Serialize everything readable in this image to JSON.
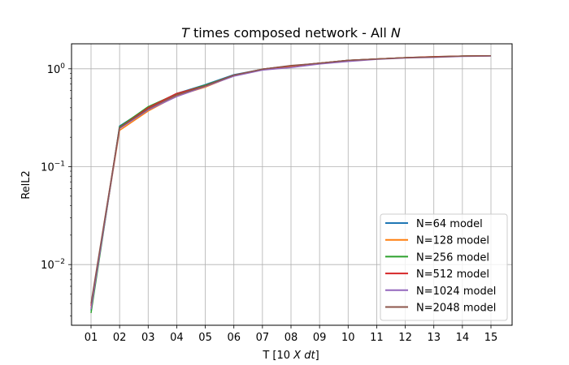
{
  "chart_data": {
    "type": "line",
    "title_parts": [
      "T",
      " times composed network - All ",
      "N"
    ],
    "xlabel_parts": [
      "T [10 ",
      "X dt",
      "]"
    ],
    "ylabel": "RelL2",
    "yscale": "log",
    "ylim": [
      0.0024,
      1.8
    ],
    "grid": true,
    "legend_position": "lower-right",
    "categories": [
      "01",
      "02",
      "03",
      "04",
      "05",
      "06",
      "07",
      "08",
      "09",
      "10",
      "11",
      "12",
      "13",
      "14",
      "15"
    ],
    "y_ticks": [
      {
        "value": 0.01,
        "base": "10",
        "exp": "−2"
      },
      {
        "value": 0.1,
        "base": "10",
        "exp": "−1"
      },
      {
        "value": 1,
        "base": "10",
        "exp": "0"
      }
    ],
    "series": [
      {
        "name": "N=64 model",
        "color": "#1f77b4",
        "values": [
          0.0034,
          0.26,
          0.4,
          0.56,
          0.69,
          0.87,
          0.99,
          1.07,
          1.14,
          1.22,
          1.26,
          1.3,
          1.32,
          1.35,
          1.36
        ]
      },
      {
        "name": "N=128 model",
        "color": "#ff7f0e",
        "values": [
          0.0036,
          0.235,
          0.37,
          0.53,
          0.65,
          0.85,
          0.98,
          1.06,
          1.14,
          1.21,
          1.26,
          1.3,
          1.32,
          1.35,
          1.36
        ]
      },
      {
        "name": "N=256 model",
        "color": "#2ca02c",
        "values": [
          0.0032,
          0.255,
          0.41,
          0.555,
          0.68,
          0.86,
          0.99,
          1.07,
          1.14,
          1.22,
          1.26,
          1.3,
          1.33,
          1.35,
          1.36
        ]
      },
      {
        "name": "N=512 model",
        "color": "#d62728",
        "values": [
          0.0038,
          0.25,
          0.4,
          0.56,
          0.67,
          0.86,
          0.99,
          1.07,
          1.14,
          1.22,
          1.26,
          1.3,
          1.33,
          1.35,
          1.36
        ]
      },
      {
        "name": "N=1024 model",
        "color": "#9467bd",
        "values": [
          0.0035,
          0.245,
          0.38,
          0.52,
          0.66,
          0.84,
          0.97,
          1.03,
          1.12,
          1.19,
          1.25,
          1.29,
          1.31,
          1.34,
          1.35
        ]
      },
      {
        "name": "N=2048 model",
        "color": "#8c564b",
        "values": [
          0.004,
          0.25,
          0.39,
          0.54,
          0.67,
          0.86,
          0.99,
          1.08,
          1.14,
          1.22,
          1.26,
          1.3,
          1.32,
          1.35,
          1.36
        ]
      }
    ]
  }
}
